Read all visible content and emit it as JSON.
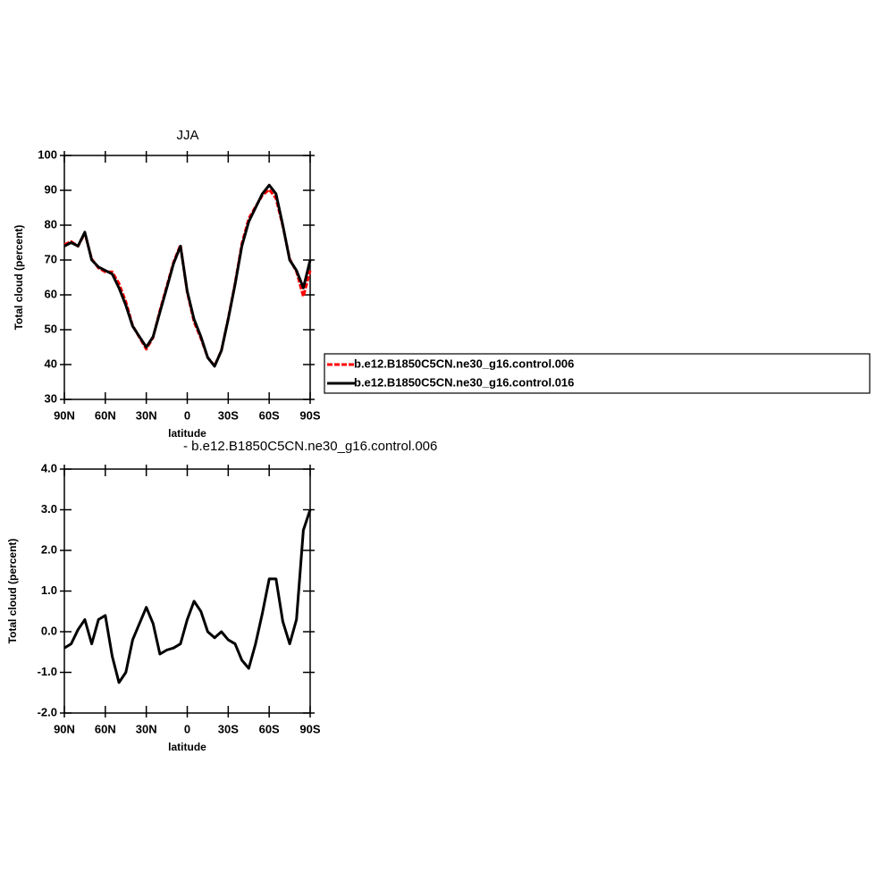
{
  "chart_data": [
    {
      "type": "line",
      "title": "JJA",
      "x_label": "latitude",
      "y_label": "Total cloud (percent)",
      "x": [
        90,
        85,
        80,
        75,
        70,
        65,
        60,
        55,
        50,
        45,
        40,
        35,
        30,
        25,
        20,
        15,
        10,
        5,
        0,
        -5,
        -10,
        -15,
        -20,
        -25,
        -30,
        -35,
        -40,
        -45,
        -50,
        -55,
        -60,
        -65,
        -70,
        -75,
        -80,
        -85,
        -90
      ],
      "xlim": [
        90,
        -90
      ],
      "xticks": [
        {
          "value": 90,
          "label": "90N"
        },
        {
          "value": 60,
          "label": "60N"
        },
        {
          "value": 30,
          "label": "30N"
        },
        0,
        {
          "value": -30,
          "label": "30S"
        },
        {
          "value": -60,
          "label": "60S"
        },
        {
          "value": -90,
          "label": "90S"
        }
      ],
      "ylim": [
        30,
        100
      ],
      "yticks": [
        30,
        40,
        50,
        60,
        70,
        80,
        90,
        100
      ],
      "legend": "right",
      "series": [
        {
          "name": "b.e12.B1850C5CN.ne30_g16.control.006",
          "color": "#ff0000",
          "line_style": "dashed",
          "values": [
            74.4,
            75.3,
            73.95,
            77.7,
            70.3,
            67.7,
            66.6,
            66.6,
            63.25,
            58,
            51.2,
            47.8,
            44.4,
            47.8,
            55.55,
            62.45,
            69.4,
            74.3,
            60.7,
            52.25,
            47.5,
            42,
            39.65,
            44,
            53.2,
            63.3,
            74.7,
            81.9,
            85.3,
            88.55,
            90.2,
            87.7,
            79.75,
            70.3,
            66.7,
            59.5,
            67
          ]
        },
        {
          "name": "b.e12.B1850C5CN.ne30_g16.control.016",
          "color": "#000000",
          "line_style": "solid",
          "values": [
            74,
            75,
            74,
            78,
            70,
            68,
            67,
            66,
            62,
            57,
            51,
            48,
            45,
            48,
            55,
            62,
            69,
            74,
            61,
            53,
            48,
            42,
            39.5,
            44,
            53,
            63,
            74,
            81,
            85,
            89,
            91.5,
            89,
            80,
            70,
            67,
            62,
            70
          ]
        }
      ]
    },
    {
      "type": "line",
      "title": "- b.e12.B1850C5CN.ne30_g16.control.006",
      "x_label": "latitude",
      "y_label": "Total cloud (percent)",
      "x": [
        90,
        85,
        80,
        75,
        70,
        65,
        60,
        55,
        50,
        45,
        40,
        35,
        30,
        25,
        20,
        15,
        10,
        5,
        0,
        -5,
        -10,
        -15,
        -20,
        -25,
        -30,
        -35,
        -40,
        -45,
        -50,
        -55,
        -60,
        -65,
        -70,
        -75,
        -80,
        -85,
        -90
      ],
      "xlim": [
        90,
        -90
      ],
      "xticks": [
        {
          "value": 90,
          "label": "90N"
        },
        {
          "value": 60,
          "label": "60N"
        },
        {
          "value": 30,
          "label": "30N"
        },
        0,
        {
          "value": -30,
          "label": "30S"
        },
        {
          "value": -60,
          "label": "60S"
        },
        {
          "value": -90,
          "label": "90S"
        }
      ],
      "ylim": [
        -2,
        4
      ],
      "yticks": [
        {
          "value": -2,
          "label": "-2.0"
        },
        {
          "value": -1,
          "label": "-1.0"
        },
        {
          "value": 0,
          "label": "0.0"
        },
        {
          "value": 1,
          "label": "1.0"
        },
        {
          "value": 2,
          "label": "2.0"
        },
        {
          "value": 3,
          "label": "3.0"
        },
        {
          "value": 4,
          "label": "4.0"
        }
      ],
      "color": "#000000",
      "values": [
        -0.4,
        -0.3,
        0.05,
        0.3,
        -0.3,
        0.3,
        0.4,
        -0.6,
        -1.25,
        -1.0,
        -0.2,
        0.2,
        0.6,
        0.2,
        -0.55,
        -0.45,
        -0.4,
        -0.3,
        0.3,
        0.75,
        0.5,
        0,
        -0.15,
        0,
        -0.2,
        -0.3,
        -0.7,
        -0.9,
        -0.3,
        0.45,
        1.3,
        1.3,
        0.25,
        -0.3,
        0.3,
        2.5,
        3.0
      ]
    }
  ]
}
